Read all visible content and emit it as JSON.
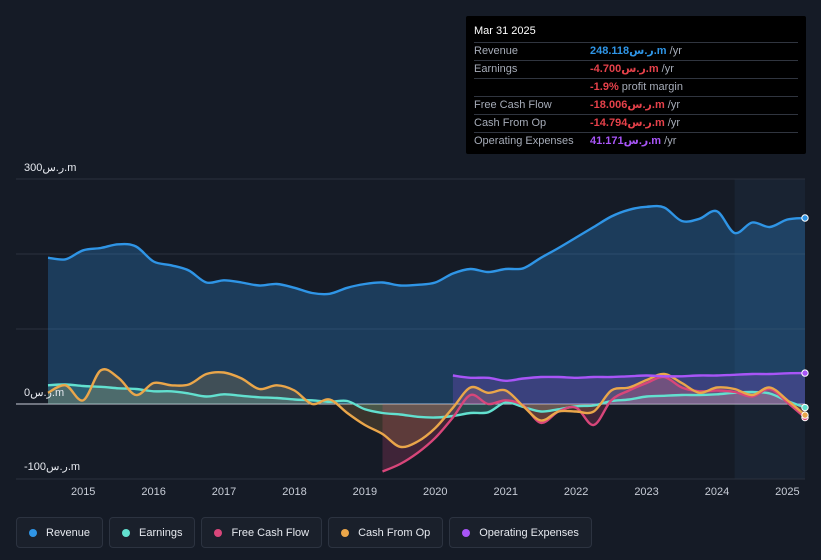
{
  "tooltip": {
    "date": "Mar 31 2025",
    "rows": [
      {
        "label": "Revenue",
        "value": "248.118ر.س.m",
        "unit": " /yr",
        "color": "#2f95e6"
      },
      {
        "label": "Earnings",
        "value": "-4.700ر.س.m",
        "unit": " /yr",
        "color": "#e5414a"
      },
      {
        "label": "",
        "value": "-1.9%",
        "unit": " profit margin",
        "color": "#e5414a"
      },
      {
        "label": "Free Cash Flow",
        "value": "-18.006ر.س.m",
        "unit": " /yr",
        "color": "#e5414a"
      },
      {
        "label": "Cash From Op",
        "value": "-14.794ر.س.m",
        "unit": " /yr",
        "color": "#e5414a"
      },
      {
        "label": "Operating Expenses",
        "value": "41.171ر.س.m",
        "unit": " /yr",
        "color": "#a855f7"
      }
    ]
  },
  "legend": [
    {
      "label": "Revenue",
      "color": "#2f95e6"
    },
    {
      "label": "Earnings",
      "color": "#62e0cf"
    },
    {
      "label": "Free Cash Flow",
      "color": "#d8467a"
    },
    {
      "label": "Cash From Op",
      "color": "#eaa64a"
    },
    {
      "label": "Operating Expenses",
      "color": "#a855f7"
    }
  ],
  "chart_data": {
    "type": "area",
    "title": "",
    "xlabel": "",
    "ylabel": "",
    "y_tick_labels": [
      "300ر.س.m",
      "0ر.س.m",
      "-100ر.س.m"
    ],
    "x_tick_labels": [
      "2015",
      "2016",
      "2017",
      "2018",
      "2019",
      "2020",
      "2021",
      "2022",
      "2023",
      "2024",
      "2025"
    ],
    "xlim": [
      2014.5,
      2025.25
    ],
    "ylim": [
      -100,
      300
    ],
    "forecast_shade_from": 2024.25,
    "series": [
      {
        "name": "Revenue",
        "color": "#2f95e6",
        "points": [
          [
            2014.5,
            195
          ],
          [
            2014.75,
            193
          ],
          [
            2015,
            205
          ],
          [
            2015.25,
            208
          ],
          [
            2015.5,
            213
          ],
          [
            2015.75,
            210
          ],
          [
            2016,
            190
          ],
          [
            2016.25,
            185
          ],
          [
            2016.5,
            178
          ],
          [
            2016.75,
            162
          ],
          [
            2017,
            165
          ],
          [
            2017.25,
            162
          ],
          [
            2017.5,
            158
          ],
          [
            2017.75,
            160
          ],
          [
            2018,
            155
          ],
          [
            2018.25,
            148
          ],
          [
            2018.5,
            147
          ],
          [
            2018.75,
            155
          ],
          [
            2019,
            160
          ],
          [
            2019.25,
            162
          ],
          [
            2019.5,
            158
          ],
          [
            2019.75,
            159
          ],
          [
            2020,
            162
          ],
          [
            2020.25,
            174
          ],
          [
            2020.5,
            180
          ],
          [
            2020.75,
            176
          ],
          [
            2021,
            180
          ],
          [
            2021.25,
            181
          ],
          [
            2021.5,
            195
          ],
          [
            2021.75,
            208
          ],
          [
            2022,
            222
          ],
          [
            2022.25,
            236
          ],
          [
            2022.5,
            250
          ],
          [
            2022.75,
            259
          ],
          [
            2023,
            263
          ],
          [
            2023.25,
            262
          ],
          [
            2023.5,
            244
          ],
          [
            2023.75,
            247
          ],
          [
            2024,
            257
          ],
          [
            2024.25,
            228
          ],
          [
            2024.5,
            242
          ],
          [
            2024.75,
            236
          ],
          [
            2025,
            246
          ],
          [
            2025.25,
            248
          ]
        ]
      },
      {
        "name": "Earnings",
        "color": "#62e0cf",
        "points": [
          [
            2014.5,
            25
          ],
          [
            2014.75,
            26
          ],
          [
            2015,
            24
          ],
          [
            2015.25,
            23
          ],
          [
            2015.5,
            21
          ],
          [
            2015.75,
            20
          ],
          [
            2016,
            17
          ],
          [
            2016.25,
            17
          ],
          [
            2016.5,
            14
          ],
          [
            2016.75,
            10
          ],
          [
            2017,
            13
          ],
          [
            2017.25,
            11
          ],
          [
            2017.5,
            9
          ],
          [
            2017.75,
            8
          ],
          [
            2018,
            6
          ],
          [
            2018.25,
            5
          ],
          [
            2018.5,
            3
          ],
          [
            2018.75,
            4
          ],
          [
            2019,
            -7
          ],
          [
            2019.25,
            -12
          ],
          [
            2019.5,
            -14
          ],
          [
            2019.75,
            -17
          ],
          [
            2020,
            -18
          ],
          [
            2020.25,
            -16
          ],
          [
            2020.5,
            -12
          ],
          [
            2020.75,
            -11
          ],
          [
            2021,
            2
          ],
          [
            2021.25,
            -4
          ],
          [
            2021.5,
            -10
          ],
          [
            2021.75,
            -7
          ],
          [
            2022,
            -3
          ],
          [
            2022.25,
            -2
          ],
          [
            2022.5,
            4
          ],
          [
            2022.75,
            6
          ],
          [
            2023,
            10
          ],
          [
            2023.25,
            11
          ],
          [
            2023.5,
            12
          ],
          [
            2023.75,
            12
          ],
          [
            2024,
            13
          ],
          [
            2024.25,
            15
          ],
          [
            2024.5,
            16
          ],
          [
            2024.75,
            14
          ],
          [
            2025,
            4
          ],
          [
            2025.25,
            -4.7
          ]
        ]
      },
      {
        "name": "Free Cash Flow",
        "color": "#d8467a",
        "points": [
          [
            2019.25,
            -90
          ],
          [
            2019.5,
            -80
          ],
          [
            2019.75,
            -65
          ],
          [
            2020,
            -45
          ],
          [
            2020.25,
            -18
          ],
          [
            2020.5,
            12
          ],
          [
            2020.75,
            0
          ],
          [
            2021,
            5
          ],
          [
            2021.25,
            -2
          ],
          [
            2021.5,
            -25
          ],
          [
            2021.75,
            -10
          ],
          [
            2022,
            -5
          ],
          [
            2022.25,
            -28
          ],
          [
            2022.5,
            5
          ],
          [
            2022.75,
            18
          ],
          [
            2023,
            28
          ],
          [
            2023.25,
            36
          ],
          [
            2023.5,
            22
          ],
          [
            2023.75,
            17
          ],
          [
            2024,
            18
          ],
          [
            2024.25,
            16
          ],
          [
            2024.5,
            10
          ],
          [
            2024.75,
            20
          ],
          [
            2025,
            2
          ],
          [
            2025.25,
            -18
          ]
        ]
      },
      {
        "name": "Cash From Op",
        "color": "#eaa64a",
        "points": [
          [
            2014.5,
            15
          ],
          [
            2014.75,
            25
          ],
          [
            2015,
            5
          ],
          [
            2015.25,
            45
          ],
          [
            2015.5,
            35
          ],
          [
            2015.75,
            12
          ],
          [
            2016,
            28
          ],
          [
            2016.25,
            25
          ],
          [
            2016.5,
            26
          ],
          [
            2016.75,
            40
          ],
          [
            2017,
            42
          ],
          [
            2017.25,
            34
          ],
          [
            2017.5,
            20
          ],
          [
            2017.75,
            25
          ],
          [
            2018,
            18
          ],
          [
            2018.25,
            0
          ],
          [
            2018.5,
            6
          ],
          [
            2018.75,
            -12
          ],
          [
            2019,
            -28
          ],
          [
            2019.25,
            -40
          ],
          [
            2019.5,
            -57
          ],
          [
            2019.75,
            -50
          ],
          [
            2020,
            -32
          ],
          [
            2020.25,
            -5
          ],
          [
            2020.5,
            22
          ],
          [
            2020.75,
            15
          ],
          [
            2021,
            18
          ],
          [
            2021.25,
            -3
          ],
          [
            2021.5,
            -22
          ],
          [
            2021.75,
            -10
          ],
          [
            2022,
            -10
          ],
          [
            2022.25,
            -10
          ],
          [
            2022.5,
            18
          ],
          [
            2022.75,
            22
          ],
          [
            2023,
            32
          ],
          [
            2023.25,
            40
          ],
          [
            2023.5,
            28
          ],
          [
            2023.75,
            15
          ],
          [
            2024,
            22
          ],
          [
            2024.25,
            20
          ],
          [
            2024.5,
            12
          ],
          [
            2024.75,
            22
          ],
          [
            2025,
            5
          ],
          [
            2025.25,
            -14.8
          ]
        ]
      },
      {
        "name": "Operating Expenses",
        "color": "#a855f7",
        "points": [
          [
            2020.25,
            38
          ],
          [
            2020.5,
            35
          ],
          [
            2020.75,
            35
          ],
          [
            2021,
            31
          ],
          [
            2021.25,
            34
          ],
          [
            2021.5,
            36
          ],
          [
            2021.75,
            36
          ],
          [
            2022,
            35
          ],
          [
            2022.25,
            36
          ],
          [
            2022.5,
            36
          ],
          [
            2022.75,
            37
          ],
          [
            2023,
            38
          ],
          [
            2023.25,
            37
          ],
          [
            2023.5,
            37
          ],
          [
            2023.75,
            38
          ],
          [
            2024,
            38
          ],
          [
            2024.25,
            39
          ],
          [
            2024.5,
            40
          ],
          [
            2024.75,
            40
          ],
          [
            2025,
            41
          ],
          [
            2025.25,
            41.2
          ]
        ]
      }
    ]
  }
}
